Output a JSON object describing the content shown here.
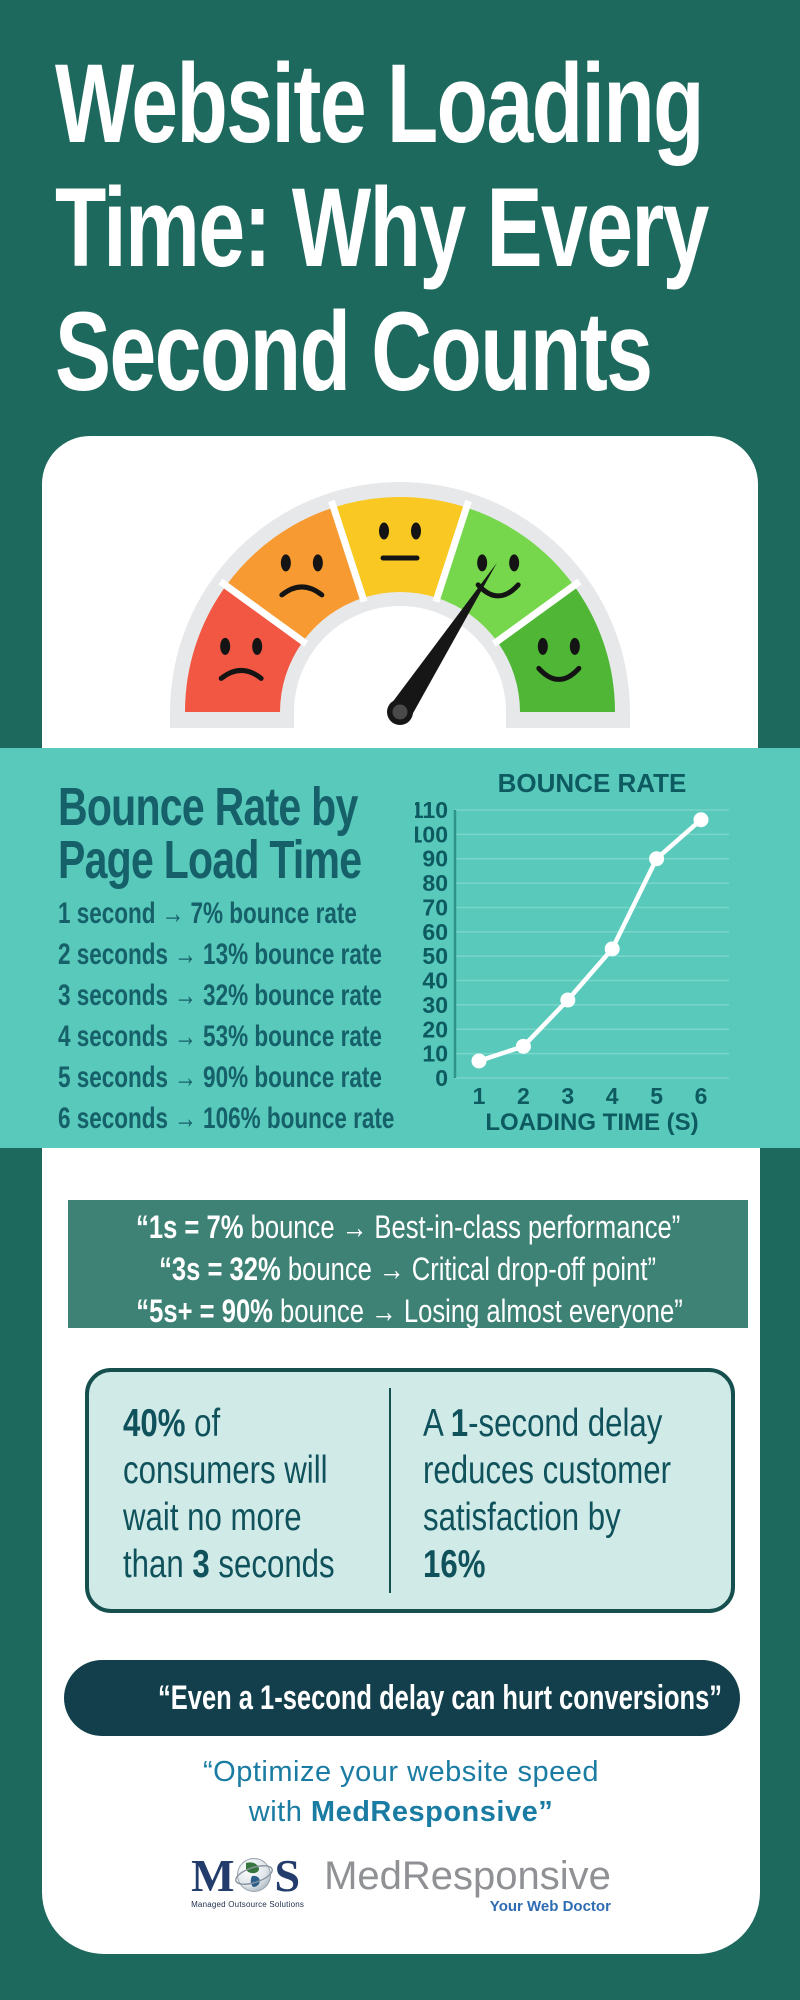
{
  "page": {
    "bg": "#1e695e",
    "card_bg": "#ffffff"
  },
  "title": {
    "color": "#ffffff",
    "lines": [
      "Website Loading",
      "Time: Why Every",
      "Second Counts"
    ]
  },
  "gauge": {
    "ring_color": "#e7e8ea",
    "inner_color": "#ffffff",
    "needle_color": "#161616",
    "hub_color": "#4a4a4a",
    "face_color": "#141414",
    "needle_angle_deg": 57,
    "segments": [
      {
        "name": "gauge-segment-very-sad",
        "icon": "very-sad-face-icon",
        "mood": "sad",
        "color": "#f15743",
        "start": 180,
        "end": 144
      },
      {
        "name": "gauge-segment-sad",
        "icon": "sad-face-icon",
        "mood": "sad",
        "color": "#f79a31",
        "start": 144,
        "end": 108
      },
      {
        "name": "gauge-segment-neutral",
        "icon": "neutral-face-icon",
        "mood": "neutral",
        "color": "#f9c822",
        "start": 108,
        "end": 72
      },
      {
        "name": "gauge-segment-happy",
        "icon": "happy-face-icon",
        "mood": "happy",
        "color": "#76d74c",
        "start": 72,
        "end": 36
      },
      {
        "name": "gauge-segment-very-happy",
        "icon": "very-happy-face-icon",
        "mood": "happy",
        "color": "#4fb636",
        "start": 36,
        "end": 0
      }
    ]
  },
  "stats_band": {
    "bg": "#58c9ba",
    "text_color": "#16606a",
    "heading_lines": [
      "Bounce Rate by",
      "Page Load Time"
    ],
    "items": [
      "1 second → 7% bounce rate",
      "2 seconds → 13% bounce rate",
      "3 seconds → 32% bounce rate",
      "4 seconds → 53% bounce rate",
      "5 seconds → 90% bounce rate",
      "6 seconds → 106% bounce rate"
    ]
  },
  "chart_data": {
    "type": "line",
    "title": "BOUNCE RATE",
    "xlabel": "LOADING TIME (S)",
    "ylabel": "",
    "x": [
      1,
      2,
      3,
      4,
      5,
      6
    ],
    "values": [
      7,
      13,
      32,
      53,
      90,
      106
    ],
    "ylim": [
      0,
      110
    ],
    "ytick_step": 10,
    "grid": true,
    "legend_position": "none",
    "line_color": "#ffffff",
    "point_color": "#ffffff",
    "text_color": "#0d5a60",
    "grid_color": "#79d6c9",
    "axis_color": "#2f9488"
  },
  "quotes": {
    "bg": "#3e8276",
    "text_color": "#ffffff",
    "lines": [
      [
        {
          "t": "“1s = 7%",
          "b": true
        },
        {
          "t": " bounce → Best-in-class performance”"
        }
      ],
      [
        {
          "t": "“3s = 32%",
          "b": true
        },
        {
          "t": " bounce → Critical drop-off point”"
        }
      ],
      [
        {
          "t": "“5s+ = 90%",
          "b": true
        },
        {
          "t": " bounce → Losing almost everyone”"
        }
      ]
    ]
  },
  "stat_cards": {
    "bg": "#d0eae8",
    "border": "#15504f",
    "text_color": "#0f525c",
    "left_lines": [
      [
        {
          "t": "40%",
          "b": true
        },
        {
          "t": " of"
        }
      ],
      [
        {
          "t": "consumers will"
        }
      ],
      [
        {
          "t": "wait no more"
        }
      ],
      [
        {
          "t": "than "
        },
        {
          "t": "3",
          "b": true
        },
        {
          "t": " seconds"
        }
      ]
    ],
    "right_lines": [
      [
        {
          "t": "A "
        },
        {
          "t": "1",
          "b": true
        },
        {
          "t": "-second delay"
        }
      ],
      [
        {
          "t": "reduces customer"
        }
      ],
      [
        {
          "t": "satisfaction by"
        }
      ],
      [
        {
          "t": "16%",
          "b": true
        }
      ]
    ]
  },
  "pill": {
    "bg": "#123f4b",
    "text_color": "#ffffff",
    "text": "“Even a 1-second delay can hurt conversions”"
  },
  "cta": {
    "color": "#1b7ca3",
    "lines": [
      [
        {
          "t": "“Optimize your website speed"
        }
      ],
      [
        {
          "t": "with "
        },
        {
          "t": "MedResponsive”",
          "b": true
        }
      ]
    ]
  },
  "footer": {
    "logo_m": "M",
    "logo_s": "S",
    "logo_navy": "#223c6b",
    "tagline": "Managed Outsource Solutions",
    "tagline_color": "#22324f",
    "brand": "MedResponsive",
    "brand_color": "#8f9194",
    "sub": "Your Web Doctor",
    "sub_color": "#2e6cb3"
  }
}
